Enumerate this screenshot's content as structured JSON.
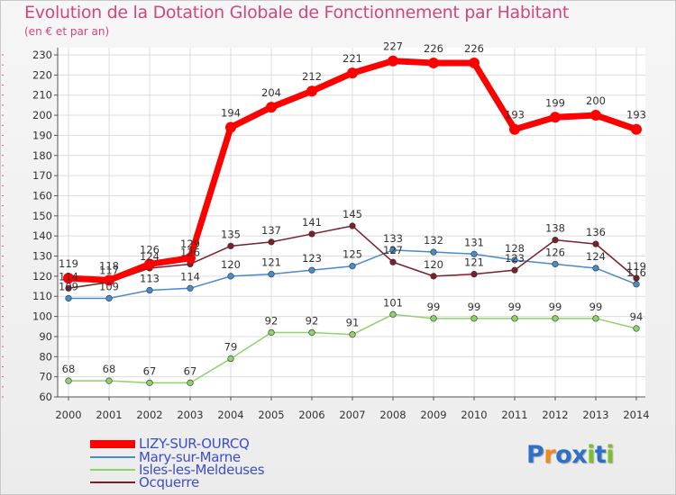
{
  "title": "Evolution de la Dotation Globale de Fonctionnement par Habitant",
  "subtitle": "(en € et par an)",
  "brand": {
    "text": "Proxiti",
    "letter_colors": [
      "#2e6fc9",
      "#f08a1d",
      "#2e6fc9",
      "#2e6fc9",
      "#7cbf2a",
      "#2e6fc9",
      "#7cbf2a"
    ]
  },
  "chart_data": {
    "type": "line",
    "title": "Evolution de la Dotation Globale de Fonctionnement par Habitant",
    "subtitle": "(en € et par an)",
    "xlabel": "",
    "ylabel": "",
    "x": [
      2000,
      2001,
      2002,
      2003,
      2004,
      2005,
      2006,
      2007,
      2008,
      2009,
      2010,
      2011,
      2012,
      2013,
      2014
    ],
    "x_tick_labels": [
      "2000",
      "2001",
      "2002",
      "2003",
      "2004",
      "2005",
      "2006",
      "2007",
      "2008",
      "2009",
      "2010",
      "2011",
      "2012",
      "2013",
      "2014"
    ],
    "ylim": [
      60,
      230
    ],
    "y_ticks": [
      60,
      70,
      80,
      90,
      100,
      110,
      120,
      130,
      140,
      150,
      160,
      170,
      180,
      190,
      200,
      210,
      220,
      230
    ],
    "grid": true,
    "legend_position": "bottom-left",
    "series": [
      {
        "name": "LIZY-SUR-OURCQ",
        "color": "#ff0000",
        "values": [
          119,
          118,
          126,
          129,
          194,
          204,
          212,
          221,
          227,
          226,
          226,
          193,
          199,
          200,
          193
        ],
        "labels": [
          "119",
          "118",
          "126",
          "129",
          "194",
          "204",
          "212",
          "221",
          "227",
          "226",
          "226",
          "193",
          "199",
          "200",
          "193"
        ]
      },
      {
        "name": "Mary-sur-Marne",
        "color": "#4a8ac9",
        "values": [
          109,
          109,
          113,
          114,
          120,
          121,
          123,
          125,
          133,
          132,
          131,
          128,
          126,
          124,
          116
        ],
        "labels": [
          "109",
          "109",
          "113",
          "114",
          "120",
          "121",
          "123",
          "125",
          "133",
          "132",
          "131",
          "128",
          "126",
          "124",
          "116"
        ]
      },
      {
        "name": "Isles-les-Meldeuses",
        "color": "#8fd16a",
        "values": [
          68,
          68,
          67,
          67,
          79,
          92,
          92,
          91,
          101,
          99,
          99,
          99,
          99,
          99,
          94
        ],
        "labels": [
          "68",
          "68",
          "67",
          "67",
          "79",
          "92",
          "92",
          "91",
          "101",
          "99",
          "99",
          "99",
          "99",
          "99",
          "94"
        ]
      },
      {
        "name": "Ocquerre",
        "color": "#7a1f2b",
        "values": [
          114,
          117,
          124,
          126,
          135,
          137,
          141,
          145,
          127,
          120,
          121,
          123,
          138,
          136,
          119
        ],
        "labels": [
          "114",
          "117",
          "124",
          "126",
          "135",
          "137",
          "141",
          "145",
          "127",
          "120",
          "121",
          "123",
          "138",
          "136",
          "119"
        ]
      }
    ]
  }
}
